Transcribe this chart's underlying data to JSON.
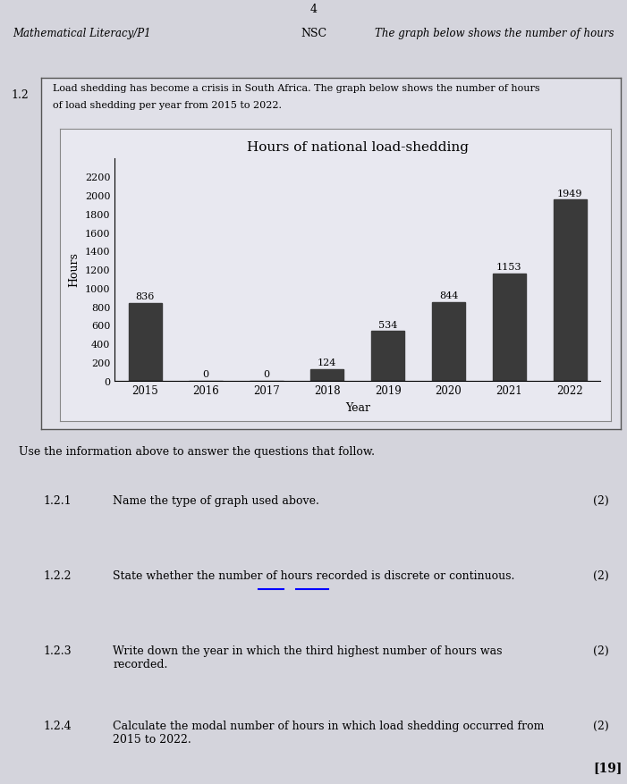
{
  "page_header_left": "Mathematical Literacy/P1",
  "page_header_right": "The graph below shows the number of hours",
  "section_label": "1.2",
  "intro_text_line1": "Load shedding has become a crisis in South Africa. The graph below shows the number of hours",
  "intro_text_line2": "of load shedding per year from 2015 to 2022.",
  "chart_title": "Hours of national load-shedding",
  "xlabel": "Year",
  "ylabel": "Hours",
  "years": [
    2015,
    2016,
    2017,
    2018,
    2019,
    2020,
    2021,
    2022
  ],
  "values": [
    836,
    0,
    0,
    124,
    534,
    844,
    1153,
    1949
  ],
  "yticks": [
    0,
    200,
    400,
    600,
    800,
    1000,
    1200,
    1400,
    1600,
    1800,
    2000,
    2200
  ],
  "bar_color": "#3a3a3a",
  "paper_color": "#d4d4dc",
  "outer_box_bg": "#e0e0e8",
  "inner_chart_bg": "#e8e8f0",
  "questions": [
    {
      "num": "1.2.1",
      "text": "Name the type of graph used above.",
      "marks": "(2)",
      "has_underline": false
    },
    {
      "num": "1.2.2",
      "text": "State whether the number of hours recorded is discrete or continuous.",
      "marks": "(2)",
      "has_underline": true,
      "underline_start_word": "discrete",
      "pre_underline1": "State whether the number of hours recorded is ",
      "word1": "discrete",
      "between": " or ",
      "word2": "continuous"
    },
    {
      "num": "1.2.3",
      "text": "Write down the year in which the third highest number of hours was\nrecorded.",
      "marks": "(2)",
      "has_underline": false
    },
    {
      "num": "1.2.4",
      "text": "Calculate the modal number of hours in which load shedding occurred from\n2015 to 2022.",
      "marks": "(2)",
      "has_underline": false
    }
  ],
  "use_info_text": "Use the information above to answer the questions that follow.",
  "total_marks": "[19]",
  "ylim": [
    0,
    2400
  ]
}
